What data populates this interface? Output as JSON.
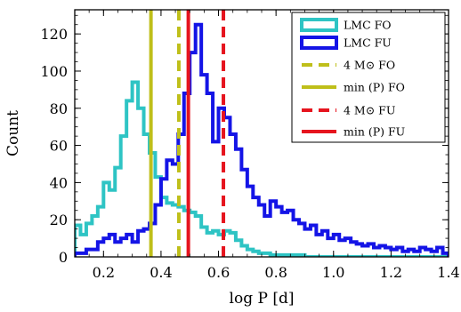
{
  "chart_data": {
    "type": "histogram",
    "xlabel": "log P [d]",
    "ylabel": "Count",
    "xlim": [
      0.1,
      1.4
    ],
    "ylim": [
      0,
      133
    ],
    "xticks": [
      0.2,
      0.4,
      0.6,
      0.8,
      1.0,
      1.2,
      1.4
    ],
    "xtick_labels": [
      "0.2",
      "0.4",
      "0.6",
      "0.8",
      "1.0",
      "1.2",
      "1.4"
    ],
    "yticks": [
      0,
      20,
      40,
      60,
      80,
      100,
      120
    ],
    "ytick_labels": [
      "0",
      "20",
      "40",
      "60",
      "80",
      "100",
      "120"
    ],
    "grid": false,
    "legend_position": "top-right",
    "series": [
      {
        "name": "LMC FO",
        "kind": "step",
        "color": "#2ec4c4",
        "x_edges": [
          0.1,
          0.12,
          0.14,
          0.16,
          0.18,
          0.2,
          0.22,
          0.24,
          0.26,
          0.28,
          0.3,
          0.32,
          0.34,
          0.36,
          0.38,
          0.4,
          0.42,
          0.44,
          0.46,
          0.48,
          0.5,
          0.52,
          0.54,
          0.56,
          0.58,
          0.6,
          0.62,
          0.64,
          0.66,
          0.68,
          0.7,
          0.72,
          0.74,
          0.76,
          0.78,
          0.8,
          0.85,
          0.9,
          1.0,
          1.1,
          1.2,
          1.3,
          1.4
        ],
        "counts": [
          17,
          12,
          18,
          22,
          27,
          40,
          36,
          48,
          65,
          84,
          94,
          80,
          66,
          56,
          43,
          32,
          29,
          28,
          27,
          25,
          24,
          22,
          16,
          13,
          14,
          12,
          14,
          13,
          9,
          6,
          4,
          3,
          2,
          2,
          1,
          1,
          1,
          0,
          0,
          0,
          0,
          0
        ]
      },
      {
        "name": "LMC FU",
        "kind": "step",
        "color": "#1414e6",
        "x_edges": [
          0.1,
          0.12,
          0.14,
          0.16,
          0.18,
          0.2,
          0.22,
          0.24,
          0.26,
          0.28,
          0.3,
          0.32,
          0.34,
          0.36,
          0.38,
          0.4,
          0.42,
          0.44,
          0.46,
          0.48,
          0.5,
          0.52,
          0.54,
          0.56,
          0.58,
          0.6,
          0.62,
          0.64,
          0.66,
          0.68,
          0.7,
          0.72,
          0.74,
          0.76,
          0.78,
          0.8,
          0.82,
          0.84,
          0.86,
          0.88,
          0.9,
          0.92,
          0.94,
          0.96,
          0.98,
          1.0,
          1.02,
          1.04,
          1.06,
          1.08,
          1.1,
          1.12,
          1.14,
          1.16,
          1.18,
          1.2,
          1.22,
          1.24,
          1.26,
          1.28,
          1.3,
          1.32,
          1.34,
          1.36,
          1.38,
          1.4
        ],
        "counts": [
          2,
          2,
          4,
          4,
          8,
          10,
          12,
          8,
          10,
          12,
          8,
          14,
          15,
          18,
          28,
          42,
          52,
          50,
          66,
          88,
          110,
          125,
          98,
          88,
          62,
          80,
          75,
          66,
          58,
          47,
          38,
          32,
          28,
          22,
          30,
          27,
          24,
          25,
          20,
          18,
          15,
          17,
          12,
          14,
          10,
          12,
          9,
          10,
          8,
          7,
          6,
          7,
          5,
          6,
          5,
          4,
          5,
          3,
          4,
          3,
          5,
          4,
          3,
          5,
          2
        ]
      }
    ],
    "vlines": [
      {
        "name": "4 M⊙ FO",
        "x": 0.462,
        "color": "#bfbf1a",
        "style": "dashed"
      },
      {
        "name": "min (P) FO",
        "x": 0.365,
        "color": "#bfbf1a",
        "style": "solid"
      },
      {
        "name": "4 M⊙ FU",
        "x": 0.617,
        "color": "#e6141e",
        "style": "dashed"
      },
      {
        "name": "min (P) FU",
        "x": 0.495,
        "color": "#e6141e",
        "style": "solid"
      }
    ]
  }
}
